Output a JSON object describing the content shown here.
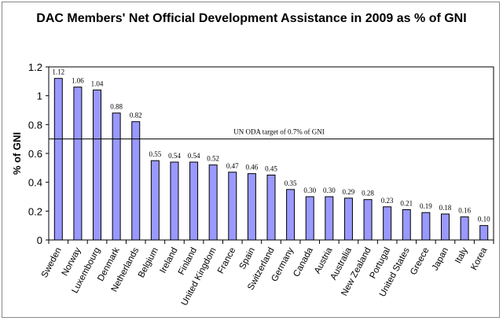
{
  "chart_data": {
    "type": "bar",
    "title": "DAC Members' Net Official Development Assistance in 2009 as % of GNI",
    "xlabel": "",
    "ylabel": "% of GNI",
    "ylim": [
      0,
      1.2
    ],
    "yticks": [
      "0",
      "0.2",
      "0.4",
      "0.6",
      "0.8",
      "1",
      "1.2"
    ],
    "grid": false,
    "bar_color": "#9999ff",
    "categories": [
      "Sweden",
      "Norway",
      "Luxembourg",
      "Denmark",
      "Netherlands",
      "Belgium",
      "Ireland",
      "Finland",
      "United Kingdom",
      "France",
      "Spain",
      "Switzerland",
      "Germany",
      "Canada",
      "Austria",
      "Australia",
      "New Zealand",
      "Portugal",
      "United States",
      "Greece",
      "Japan",
      "Italy",
      "Korea"
    ],
    "values": [
      1.12,
      1.06,
      1.04,
      0.88,
      0.82,
      0.55,
      0.54,
      0.54,
      0.52,
      0.47,
      0.46,
      0.45,
      0.35,
      0.3,
      0.3,
      0.29,
      0.28,
      0.23,
      0.21,
      0.19,
      0.18,
      0.16,
      0.1
    ],
    "data_labels": [
      "1.12",
      "1.06",
      "1.04",
      "0.88",
      "0.82",
      "0.55",
      "0.54",
      "0.54",
      "0.52",
      "0.47",
      "0.46",
      "0.45",
      "0.35",
      "0.30",
      "0.30",
      "0.29",
      "0.28",
      "0.23",
      "0.21",
      "0.19",
      "0.18",
      "0.16",
      "0.10"
    ],
    "reference_line": {
      "value": 0.7,
      "label": "UN ODA target of 0.7% of GNI"
    }
  }
}
